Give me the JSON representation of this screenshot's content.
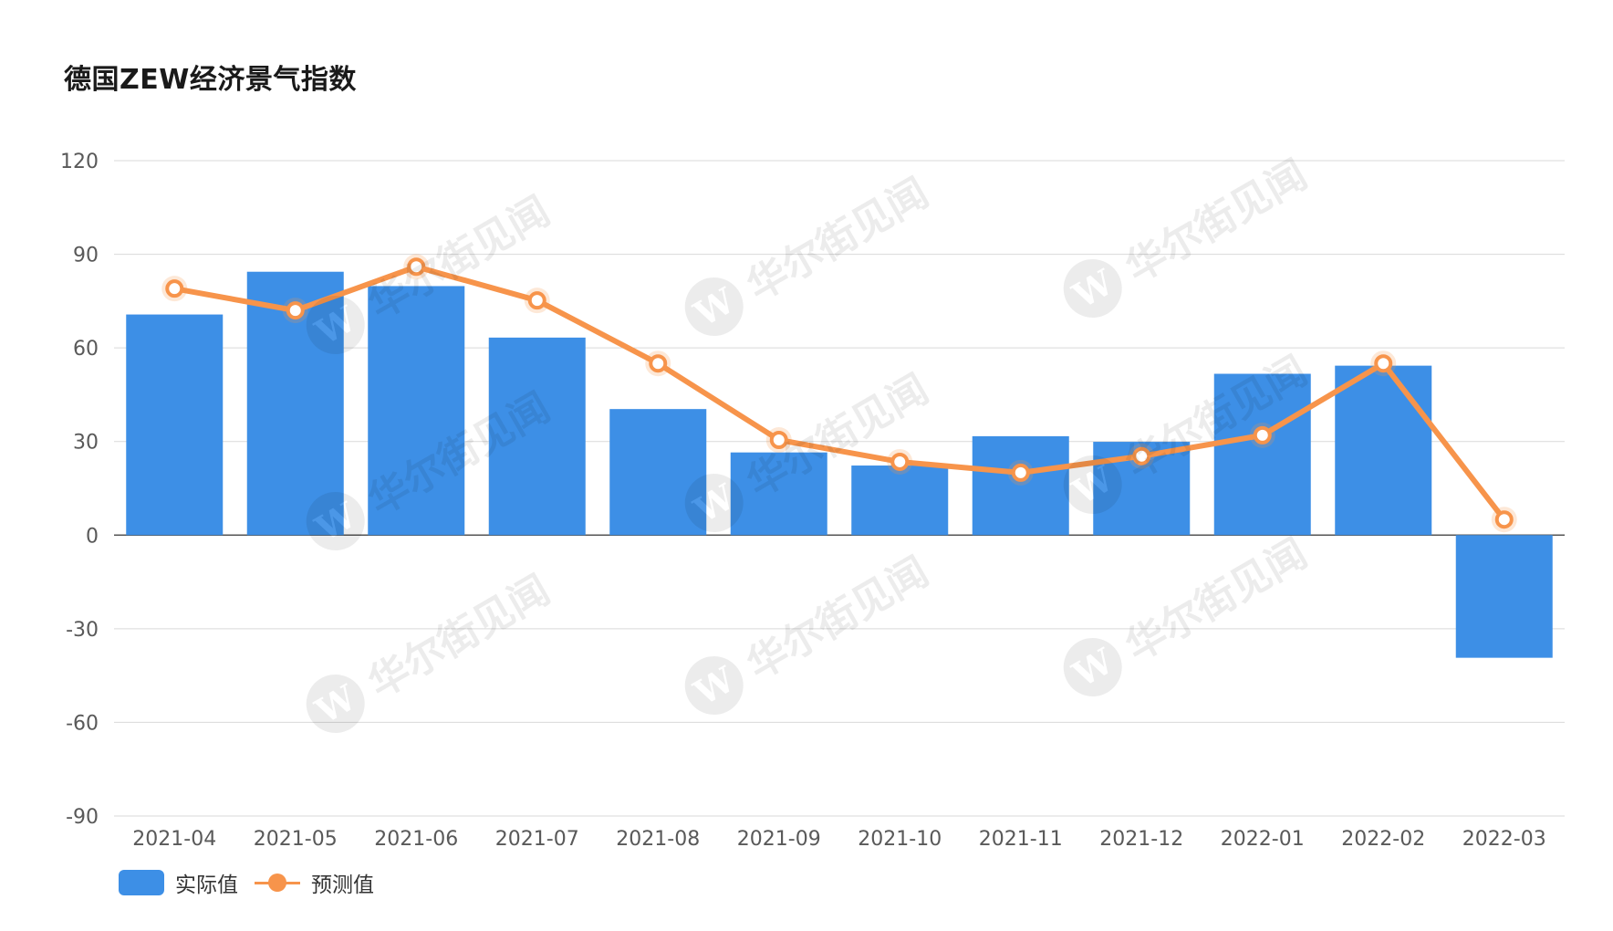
{
  "chart_data": {
    "type": "bar",
    "title": "德国ZEW经济景气指数",
    "categories": [
      "2021-04",
      "2021-05",
      "2021-06",
      "2021-07",
      "2021-08",
      "2021-09",
      "2021-10",
      "2021-11",
      "2021-12",
      "2022-01",
      "2022-02",
      "2022-03"
    ],
    "series": [
      {
        "name": "实际值",
        "type": "bar",
        "color": "#3d8fe6",
        "values": [
          70.7,
          84.4,
          79.8,
          63.3,
          40.4,
          26.5,
          22.3,
          31.7,
          29.9,
          51.7,
          54.3,
          -39.3
        ]
      },
      {
        "name": "预测值",
        "type": "line",
        "color": "#f7944b",
        "values": [
          79,
          72,
          86,
          75.2,
          55,
          30.5,
          23.5,
          20,
          25.3,
          32,
          55,
          5
        ]
      }
    ],
    "ylim": [
      -90,
      120
    ],
    "yticks": [
      120,
      90,
      60,
      30,
      0,
      -30,
      -60,
      -90
    ],
    "grid": true,
    "legend_position": "bottom-left"
  },
  "watermark": {
    "text": "华尔街见闻",
    "logo": "W"
  }
}
